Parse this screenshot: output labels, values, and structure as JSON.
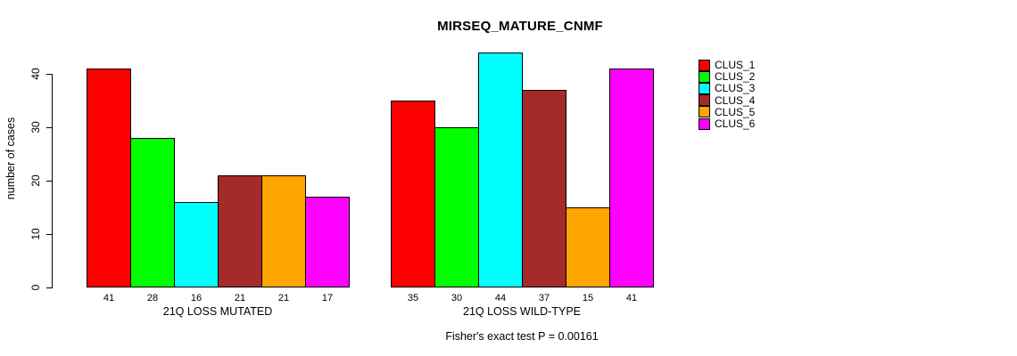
{
  "page": {
    "background": "#FFFFFF"
  },
  "chart_data": {
    "type": "bar",
    "title": "MIRSEQ_MATURE_CNMF",
    "ylabel": "number of cases",
    "xlabel": "",
    "annotation": "Fisher's exact test P = 0.00161",
    "categories": [
      "21Q LOSS MUTATED",
      "21Q LOSS WILD-TYPE"
    ],
    "series": [
      {
        "name": "CLUS_1",
        "color": "#FF0000",
        "values": [
          41,
          35
        ]
      },
      {
        "name": "CLUS_2",
        "color": "#00FF00",
        "values": [
          28,
          30
        ]
      },
      {
        "name": "CLUS_3",
        "color": "#00FFFF",
        "values": [
          16,
          44
        ]
      },
      {
        "name": "CLUS_4",
        "color": "#A52A2A",
        "values": [
          21,
          37
        ]
      },
      {
        "name": "CLUS_5",
        "color": "#FFA500",
        "values": [
          21,
          15
        ]
      },
      {
        "name": "CLUS_6",
        "color": "#FF00FF",
        "values": [
          17,
          41
        ]
      }
    ],
    "yticks": [
      0,
      10,
      20,
      30,
      40
    ],
    "ylim": [
      0,
      44
    ],
    "bar_value_labels": true,
    "legend_position": "right",
    "grid": false
  }
}
